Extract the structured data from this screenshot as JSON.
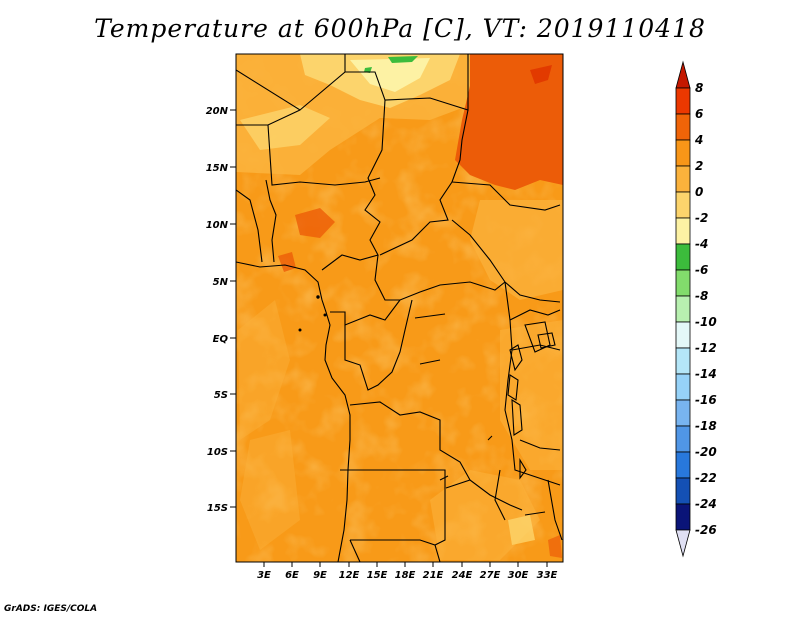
{
  "title": "Temperature at 600hPa [C], VT: 2019110418",
  "footer": "GrADS: IGES/COLA",
  "map": {
    "lat_labels": [
      "20N",
      "15N",
      "10N",
      "5N",
      "EQ",
      "5S",
      "10S",
      "15S"
    ],
    "lon_labels": [
      "3E",
      "6E",
      "9E",
      "12E",
      "15E",
      "18E",
      "21E",
      "24E",
      "27E",
      "30E",
      "33E"
    ]
  },
  "colorbar": {
    "levels": [
      "8",
      "6",
      "4",
      "2",
      "0",
      "-2",
      "-4",
      "-6",
      "-8",
      "-10",
      "-12",
      "-14",
      "-16",
      "-18",
      "-20",
      "-22",
      "-24",
      "-26"
    ],
    "colors": [
      "#c41800",
      "#ec3800",
      "#f06408",
      "#f89618",
      "#fbb23c",
      "#fcd46c",
      "#fdf2a4",
      "#3cbc3c",
      "#82dc6c",
      "#b8f0b0",
      "#e4f8f8",
      "#b4e6f8",
      "#96d2f8",
      "#78b4f0",
      "#5096e6",
      "#2878dc",
      "#1450b4",
      "#0a1478"
    ],
    "top_color": "#c41800",
    "bottom_color": "#e0e0f4"
  }
}
